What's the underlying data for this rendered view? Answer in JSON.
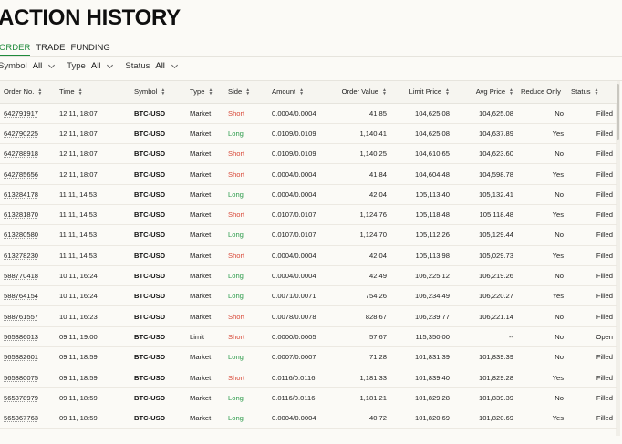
{
  "page": {
    "title": "ACTION HISTORY"
  },
  "tabs": [
    {
      "label": "ORDER",
      "active": true
    },
    {
      "label": "TRADE",
      "active": false
    },
    {
      "label": "FUNDING",
      "active": false
    }
  ],
  "filters": [
    {
      "label": "Symbol",
      "value": "All"
    },
    {
      "label": "Type",
      "value": "All"
    },
    {
      "label": "Status",
      "value": "All"
    }
  ],
  "columns": {
    "order_no": "Order No.",
    "time": "Time",
    "symbol": "Symbol",
    "type": "Type",
    "side": "Side",
    "amount": "Amount",
    "order_value": "Order Value",
    "limit_price": "Limit Price",
    "avg_price": "Avg Price",
    "reduce_only": "Reduce Only",
    "status": "Status"
  },
  "colors": {
    "short": "#d84a3a",
    "long": "#2a9a49",
    "accent": "#1f8a3b"
  },
  "rows": [
    [
      "642791917",
      "12 11, 18:07",
      "BTC-USD",
      "Market",
      "Short",
      "0.0004/0.0004",
      "41.85",
      "104,625.08",
      "104,625.08",
      "No",
      "Filled"
    ],
    [
      "642790225",
      "12 11, 18:07",
      "BTC-USD",
      "Market",
      "Long",
      "0.0109/0.0109",
      "1,140.41",
      "104,625.08",
      "104,637.89",
      "Yes",
      "Filled"
    ],
    [
      "642788918",
      "12 11, 18:07",
      "BTC-USD",
      "Market",
      "Short",
      "0.0109/0.0109",
      "1,140.25",
      "104,610.65",
      "104,623.60",
      "No",
      "Filled"
    ],
    [
      "642785656",
      "12 11, 18:07",
      "BTC-USD",
      "Market",
      "Short",
      "0.0004/0.0004",
      "41.84",
      "104,604.48",
      "104,598.78",
      "Yes",
      "Filled"
    ],
    [
      "613284178",
      "11 11, 14:53",
      "BTC-USD",
      "Market",
      "Long",
      "0.0004/0.0004",
      "42.04",
      "105,113.40",
      "105,132.41",
      "No",
      "Filled"
    ],
    [
      "613281870",
      "11 11, 14:53",
      "BTC-USD",
      "Market",
      "Short",
      "0.0107/0.0107",
      "1,124.76",
      "105,118.48",
      "105,118.48",
      "Yes",
      "Filled"
    ],
    [
      "613280580",
      "11 11, 14:53",
      "BTC-USD",
      "Market",
      "Long",
      "0.0107/0.0107",
      "1,124.70",
      "105,112.26",
      "105,129.44",
      "No",
      "Filled"
    ],
    [
      "613278230",
      "11 11, 14:53",
      "BTC-USD",
      "Market",
      "Short",
      "0.0004/0.0004",
      "42.04",
      "105,113.98",
      "105,029.73",
      "Yes",
      "Filled"
    ],
    [
      "588770418",
      "10 11, 16:24",
      "BTC-USD",
      "Market",
      "Long",
      "0.0004/0.0004",
      "42.49",
      "106,225.12",
      "106,219.26",
      "No",
      "Filled"
    ],
    [
      "588764154",
      "10 11, 16:24",
      "BTC-USD",
      "Market",
      "Long",
      "0.0071/0.0071",
      "754.26",
      "106,234.49",
      "106,220.27",
      "Yes",
      "Filled"
    ],
    [
      "588761557",
      "10 11, 16:23",
      "BTC-USD",
      "Market",
      "Short",
      "0.0078/0.0078",
      "828.67",
      "106,239.77",
      "106,221.14",
      "No",
      "Filled"
    ],
    [
      "565386013",
      "09 11, 19:00",
      "BTC-USD",
      "Limit",
      "Short",
      "0.0000/0.0005",
      "57.67",
      "115,350.00",
      "--",
      "No",
      "Open"
    ],
    [
      "565382601",
      "09 11, 18:59",
      "BTC-USD",
      "Market",
      "Long",
      "0.0007/0.0007",
      "71.28",
      "101,831.39",
      "101,839.39",
      "No",
      "Filled"
    ],
    [
      "565380075",
      "09 11, 18:59",
      "BTC-USD",
      "Market",
      "Short",
      "0.0116/0.0116",
      "1,181.33",
      "101,839.40",
      "101,829.28",
      "Yes",
      "Filled"
    ],
    [
      "565378979",
      "09 11, 18:59",
      "BTC-USD",
      "Market",
      "Long",
      "0.0116/0.0116",
      "1,181.21",
      "101,829.28",
      "101,839.39",
      "No",
      "Filled"
    ],
    [
      "565367763",
      "09 11, 18:59",
      "BTC-USD",
      "Market",
      "Long",
      "0.0004/0.0004",
      "40.72",
      "101,820.69",
      "101,820.69",
      "Yes",
      "Filled"
    ]
  ]
}
